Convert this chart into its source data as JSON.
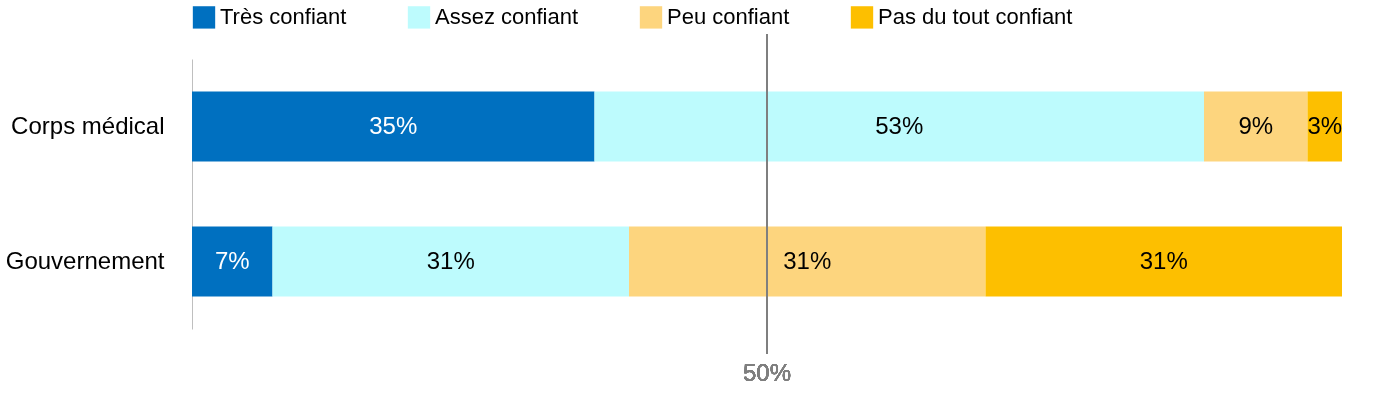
{
  "chart_data": {
    "type": "bar",
    "orientation": "horizontal",
    "stacked": true,
    "categories": [
      "Corps médical",
      "Gouvernement"
    ],
    "series": [
      {
        "name": "Très confiant",
        "color": "#0070c0",
        "values": [
          35,
          7
        ],
        "value_labels": [
          "35%",
          "7%"
        ]
      },
      {
        "name": "Assez confiant",
        "color": "#bdfbfd",
        "values": [
          53,
          31
        ],
        "value_labels": [
          "53%",
          "31%"
        ]
      },
      {
        "name": "Peu confiant",
        "color": "#fdd57e",
        "values": [
          9,
          31
        ],
        "value_labels": [
          "9%",
          "31%"
        ]
      },
      {
        "name": "Pas du tout confiant",
        "color": "#fdbf00",
        "values": [
          3,
          31
        ],
        "value_labels": [
          "3%",
          "31%"
        ]
      }
    ],
    "xlim": [
      0,
      100
    ],
    "legend": "top",
    "grid": false,
    "tick_labels": "y",
    "ref_lines": [
      {
        "axis": "x",
        "value": 50,
        "label": "50%",
        "color": "#7f7f7f"
      }
    ]
  }
}
